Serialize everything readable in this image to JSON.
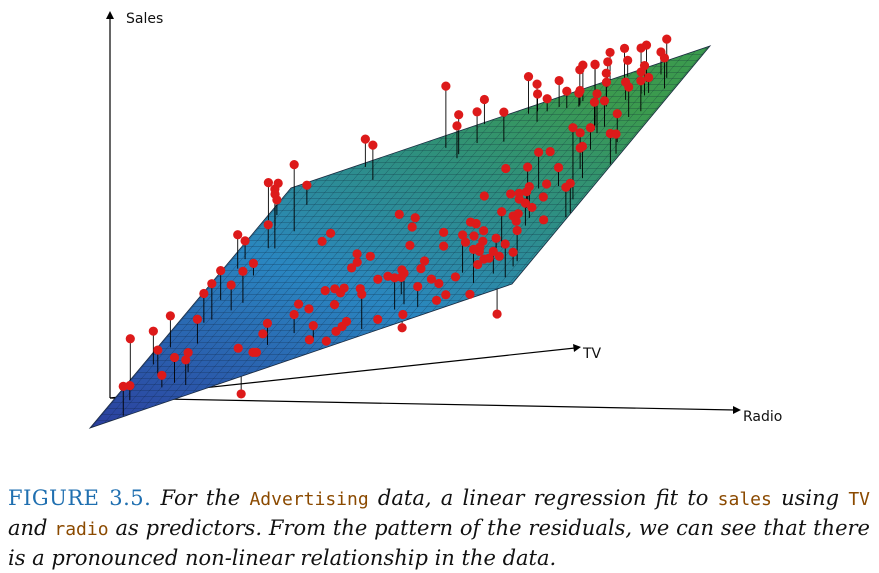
{
  "figure": {
    "axes": {
      "vertical_label": "Sales",
      "tv_label": "TV",
      "radio_label": "Radio"
    },
    "colors": {
      "point": "#dd1a1a",
      "plane_low": "#2a4ea8",
      "plane_mid": "#2a8fc0",
      "plane_high": "#3a9a52",
      "residual_line": "#000000"
    }
  },
  "caption": {
    "figure_label": "FIGURE 3.5.",
    "part1": "For the",
    "dataset": "Advertising",
    "part2": "data, a linear regression fit to",
    "response": "sales",
    "part3": "using",
    "predictor1": "TV",
    "part4": "and",
    "predictor2": "radio",
    "part5": "as predictors. From the pattern of the residuals, we can see that there is a pronounced non-linear relationship in the data."
  }
}
